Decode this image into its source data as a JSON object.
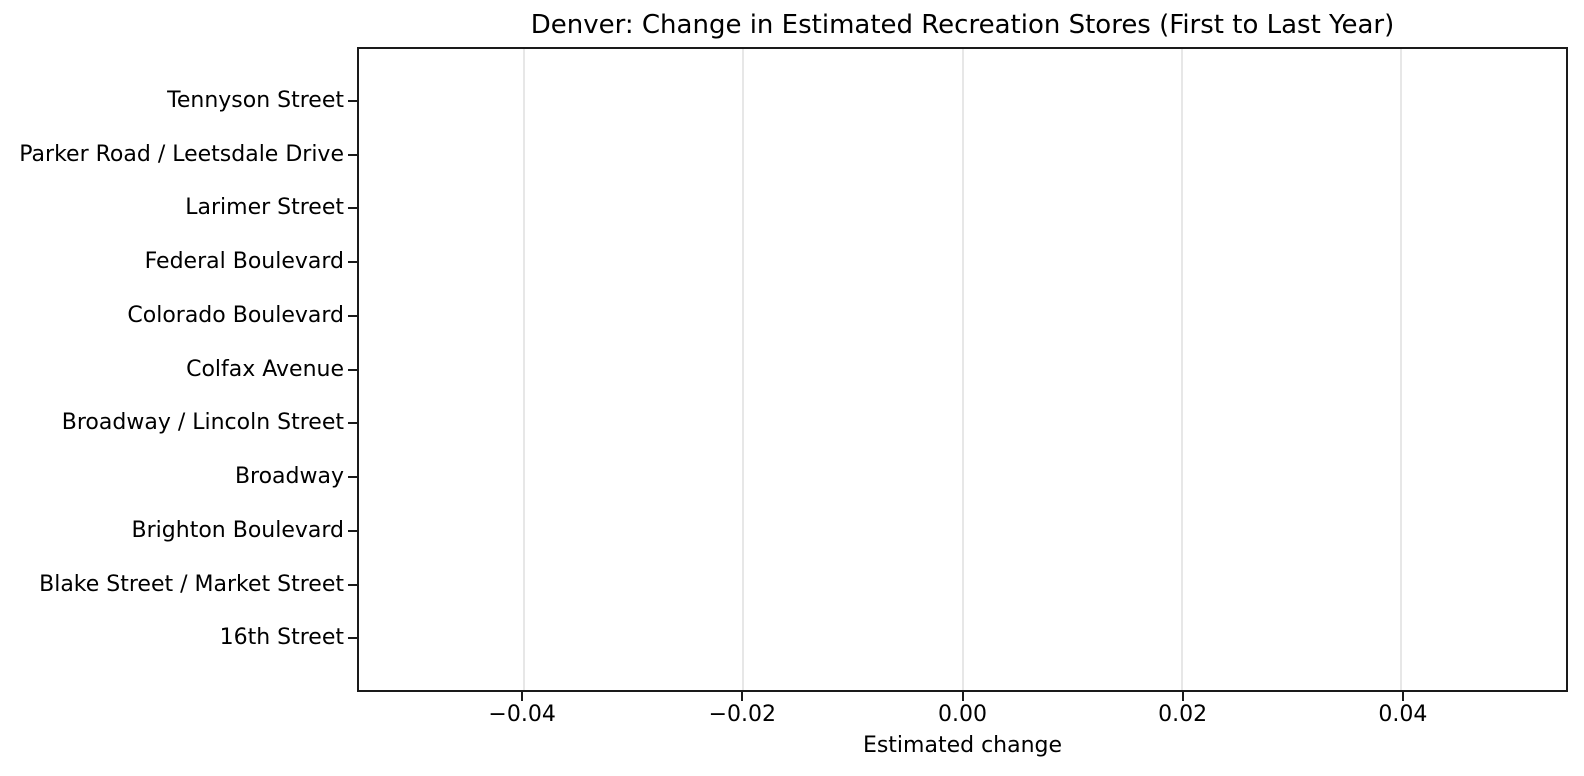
{
  "figure": {
    "background": "#ffffff"
  },
  "chart_data": {
    "type": "bar",
    "orientation": "horizontal",
    "title": "Denver: Change in Estimated Recreation Stores (First to Last Year)",
    "xlabel": "Estimated change",
    "ylabel": "",
    "categories": [
      "Tennyson Street",
      "Parker Road / Leetsdale Drive",
      "Larimer Street",
      "Federal Boulevard",
      "Colorado Boulevard",
      "Colfax Avenue",
      "Broadway / Lincoln Street",
      "Broadway",
      "Brighton Boulevard",
      "Blake Street / Market Street",
      "16th Street"
    ],
    "values": [
      0,
      0,
      0,
      0,
      0,
      0,
      0,
      0,
      0,
      0,
      0
    ],
    "xlim": [
      -0.055,
      0.055
    ],
    "xticks": [
      -0.04,
      -0.02,
      0.0,
      0.02,
      0.04
    ],
    "xtick_labels": [
      "−0.04",
      "−0.02",
      "0.00",
      "0.02",
      "0.04"
    ],
    "grid": "vertical",
    "legend": "none",
    "colors": {
      "spine": "#1a1a1a",
      "grid": "#e7e7e7",
      "text": "#000000"
    }
  }
}
